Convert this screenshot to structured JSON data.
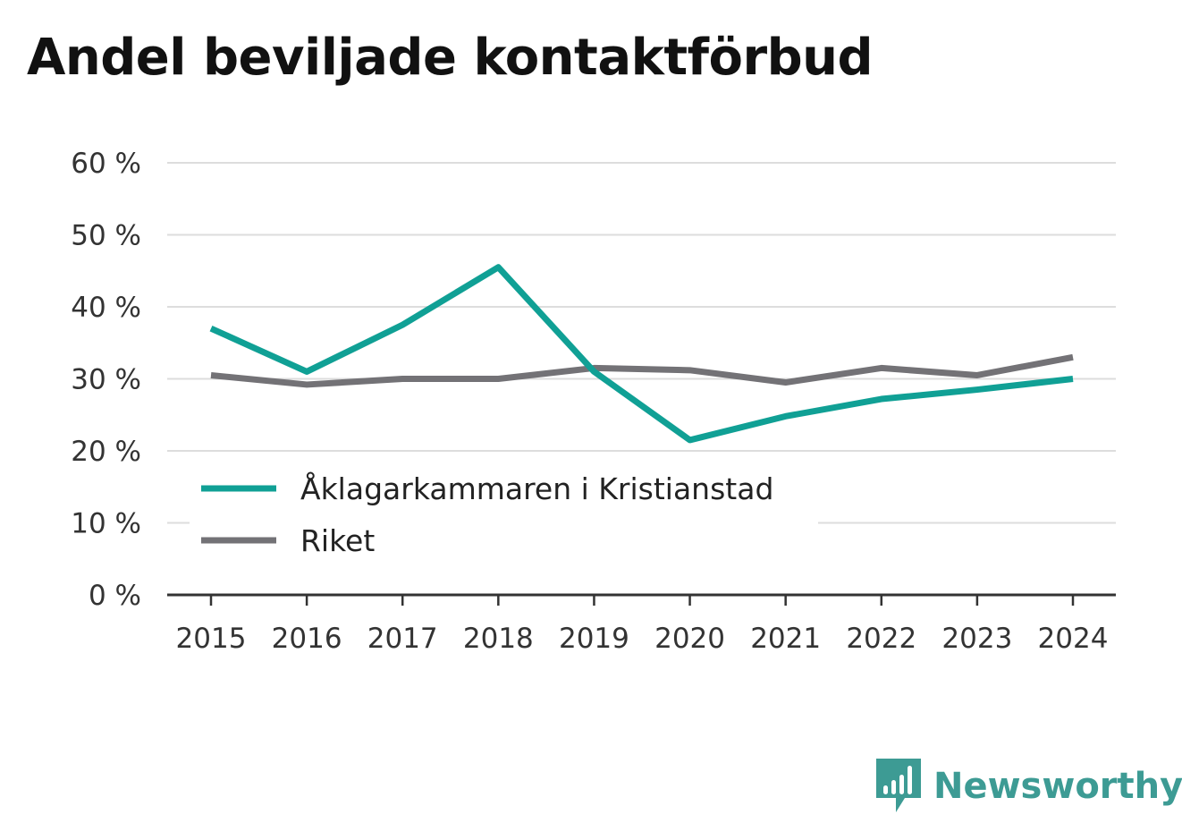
{
  "chart_data": {
    "type": "line",
    "title": "Andel beviljade kontaktförbud",
    "x": [
      "2015",
      "2016",
      "2017",
      "2018",
      "2019",
      "2020",
      "2021",
      "2022",
      "2023",
      "2024"
    ],
    "series": [
      {
        "name": "Åklagarkammaren i Kristianstad",
        "color": "#10a095",
        "values": [
          37.0,
          31.0,
          37.5,
          45.5,
          31.0,
          21.5,
          24.8,
          27.2,
          28.5,
          30.0
        ]
      },
      {
        "name": "Riket",
        "color": "#737276",
        "values": [
          30.5,
          29.2,
          30.0,
          30.0,
          31.5,
          31.2,
          29.5,
          31.5,
          30.5,
          33.0
        ]
      }
    ],
    "yticks": [
      "0 %",
      "10 %",
      "20 %",
      "30 %",
      "40 %",
      "50 %",
      "60 %"
    ],
    "ylim": [
      0,
      60
    ],
    "xlabel": "",
    "ylabel": "",
    "grid": true,
    "legend": "lower-left"
  },
  "branding": {
    "name": "Newsworthy",
    "logo_icon": "bar-chart-speech-bubble-icon",
    "color": "#3d9b94"
  }
}
